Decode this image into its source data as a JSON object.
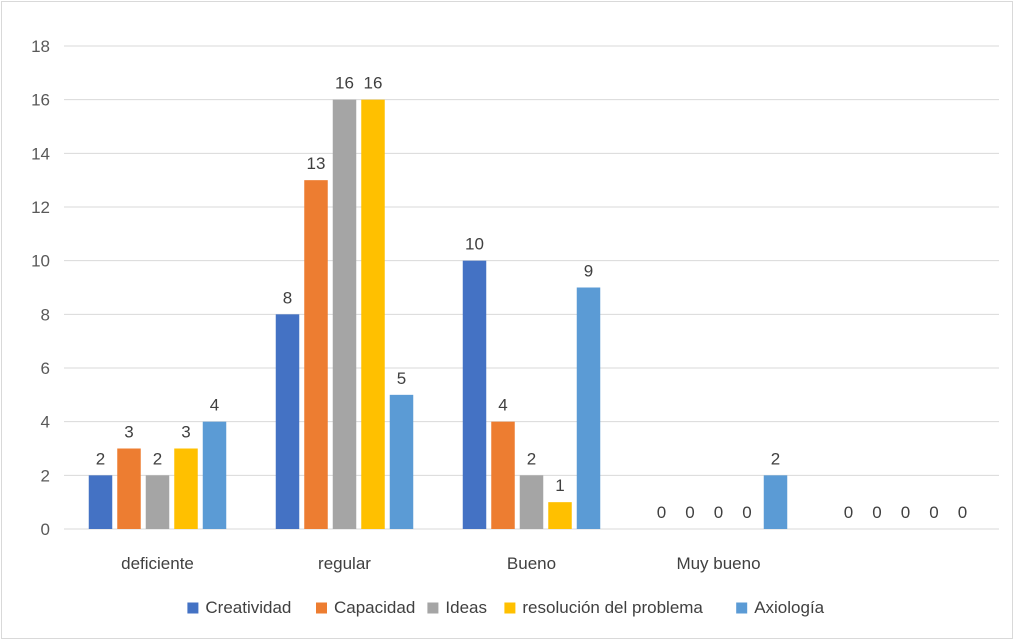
{
  "chart_data": {
    "type": "bar",
    "categories": [
      "deficiente",
      "regular",
      "Bueno",
      "Muy bueno",
      ""
    ],
    "series": [
      {
        "name": "Creatividad",
        "color": "#4472c4",
        "values": [
          2,
          8,
          10,
          0,
          0
        ]
      },
      {
        "name": "Capacidad",
        "color": "#ed7d31",
        "values": [
          3,
          13,
          4,
          0,
          0
        ]
      },
      {
        "name": "Ideas",
        "color": "#a5a5a5",
        "values": [
          2,
          16,
          2,
          0,
          0
        ]
      },
      {
        "name": "resolución del problema",
        "color": "#ffc000",
        "values": [
          3,
          16,
          1,
          0,
          0
        ]
      },
      {
        "name": "Axiología",
        "color": "#5b9bd5",
        "values": [
          4,
          5,
          9,
          2,
          0
        ]
      }
    ],
    "ylim": [
      0,
      18
    ],
    "yticks": [
      0,
      2,
      4,
      6,
      8,
      10,
      12,
      14,
      16,
      18
    ],
    "grid": true,
    "legend_position": "bottom",
    "data_labels": true
  }
}
